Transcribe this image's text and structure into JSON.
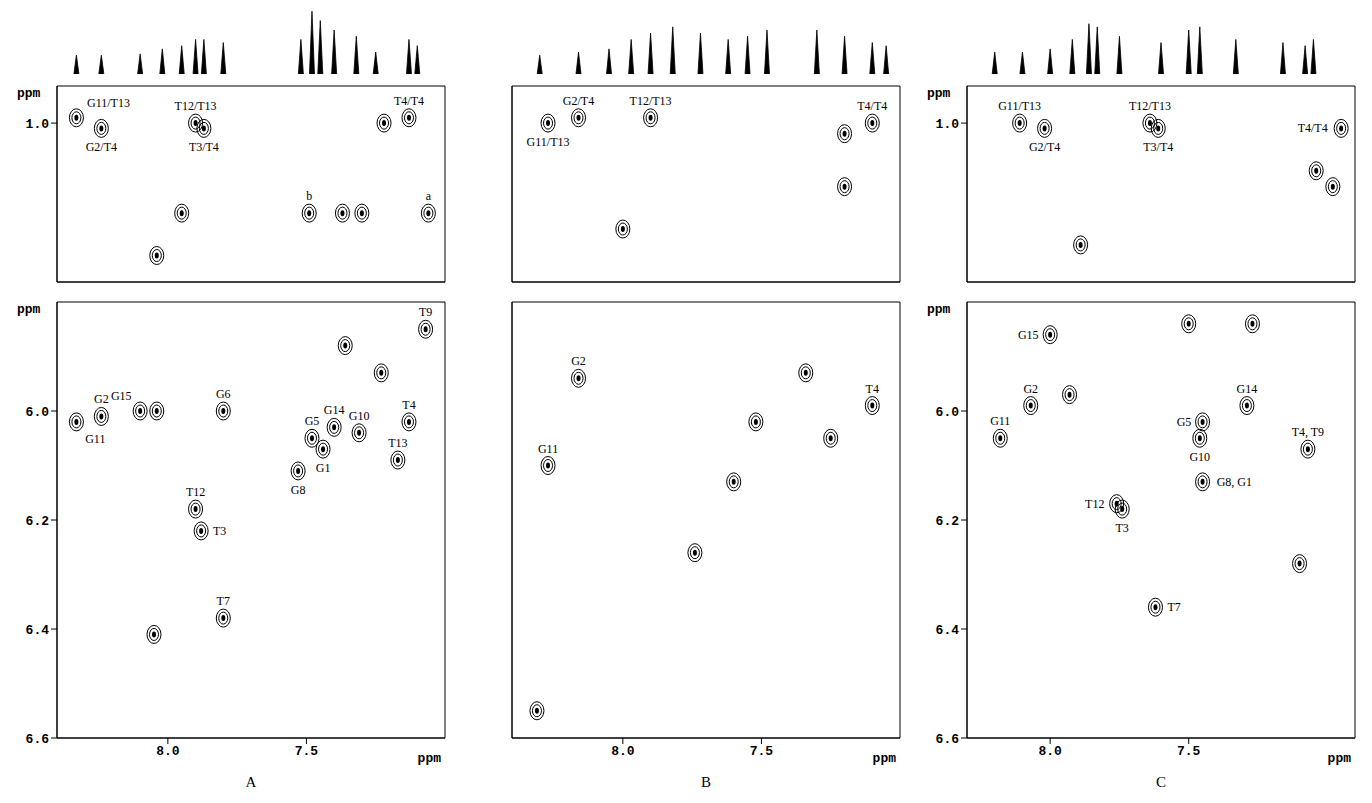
{
  "chart_data": [
    {
      "type": "composite",
      "panel_label": "A",
      "spectrum": {
        "type": "bar",
        "color": "#000000",
        "tick_labels": false,
        "xlim": [
          8.4,
          7.0
        ],
        "ylim": [
          0,
          1.05
        ],
        "x": [
          8.33,
          8.24,
          8.1,
          8.02,
          7.95,
          7.9,
          7.87,
          7.8,
          7.52,
          7.48,
          7.45,
          7.4,
          7.32,
          7.25,
          7.13,
          7.1
        ],
        "values": [
          0.3,
          0.3,
          0.32,
          0.4,
          0.45,
          0.55,
          0.55,
          0.5,
          0.55,
          1.0,
          0.85,
          0.7,
          0.6,
          0.35,
          0.55,
          0.45
        ]
      },
      "methyl": {
        "type": "scatter",
        "color": "#000000",
        "tick_labels": "y",
        "y_label": "ppm",
        "xlim": [
          8.4,
          7.0
        ],
        "ylim": [
          1.3,
          0.93
        ],
        "xticks": [
          {
            "value": 8,
            "label": "8.0"
          },
          {
            "value": 7.5,
            "label": "7.5"
          }
        ],
        "yticks": [
          {
            "value": 1,
            "label": "1.0"
          }
        ],
        "points": [
          {
            "x": 8.33,
            "y": 0.99,
            "label": "G11/T13"
          },
          {
            "x": 8.24,
            "y": 1.01,
            "label": "G2/T4"
          },
          {
            "x": 7.9,
            "y": 1.0,
            "label": "T12/T13"
          },
          {
            "x": 7.87,
            "y": 1.01,
            "label": "T3/T4"
          },
          {
            "x": 7.22,
            "y": 1.0
          },
          {
            "x": 7.13,
            "y": 0.99,
            "label": "T4/T4"
          },
          {
            "x": 7.49,
            "y": 1.17,
            "label": "b"
          },
          {
            "x": 7.06,
            "y": 1.17,
            "label": "a"
          },
          {
            "x": 7.95,
            "y": 1.17
          },
          {
            "x": 8.04,
            "y": 1.25
          },
          {
            "x": 7.37,
            "y": 1.17
          },
          {
            "x": 7.3,
            "y": 1.17
          }
        ]
      },
      "sugar": {
        "type": "scatter",
        "color": "#000000",
        "tick_labels": true,
        "x_label": "ppm",
        "y_label": "ppm",
        "xlim": [
          8.4,
          7.0
        ],
        "ylim": [
          6.6,
          5.8
        ],
        "xticks": [
          {
            "value": 8,
            "label": "8.0"
          },
          {
            "value": 7.5,
            "label": "7.5"
          }
        ],
        "yticks": [
          {
            "value": 6,
            "label": "6.0"
          },
          {
            "value": 6.2,
            "label": "6.2"
          },
          {
            "value": 6.4,
            "label": "6.4"
          },
          {
            "value": 6.6,
            "label": "6.6"
          }
        ],
        "points": [
          {
            "x": 8.33,
            "y": 6.02,
            "label": "G11"
          },
          {
            "x": 8.24,
            "y": 6.01,
            "label": "G2"
          },
          {
            "x": 8.1,
            "y": 6.0,
            "label": "G15"
          },
          {
            "x": 8.04,
            "y": 6.0
          },
          {
            "x": 7.8,
            "y": 6.0,
            "label": "G6"
          },
          {
            "x": 7.9,
            "y": 6.18,
            "label": "T12"
          },
          {
            "x": 7.88,
            "y": 6.22,
            "label": "T3"
          },
          {
            "x": 7.8,
            "y": 6.38,
            "label": "T7"
          },
          {
            "x": 8.05,
            "y": 6.41
          },
          {
            "x": 7.53,
            "y": 6.11,
            "label": "G8"
          },
          {
            "x": 7.44,
            "y": 6.07,
            "label": "G1"
          },
          {
            "x": 7.48,
            "y": 6.05,
            "label": "G5"
          },
          {
            "x": 7.4,
            "y": 6.03,
            "label": "G14"
          },
          {
            "x": 7.31,
            "y": 6.04,
            "label": "G10"
          },
          {
            "x": 7.17,
            "y": 6.09,
            "label": "T13"
          },
          {
            "x": 7.13,
            "y": 6.02,
            "label": "T4"
          },
          {
            "x": 7.07,
            "y": 5.85,
            "label": "T9"
          },
          {
            "x": 7.36,
            "y": 5.88
          },
          {
            "x": 7.23,
            "y": 5.93
          }
        ]
      }
    },
    {
      "type": "composite",
      "panel_label": "B",
      "spectrum": {
        "type": "bar",
        "color": "#000000",
        "tick_labels": false,
        "xlim": [
          8.4,
          7.0
        ],
        "ylim": [
          0,
          1.05
        ],
        "x": [
          8.3,
          8.16,
          8.05,
          7.97,
          7.9,
          7.82,
          7.72,
          7.62,
          7.55,
          7.48,
          7.3,
          7.2,
          7.1,
          7.05
        ],
        "values": [
          0.3,
          0.35,
          0.4,
          0.55,
          0.65,
          0.75,
          0.65,
          0.55,
          0.6,
          0.7,
          0.7,
          0.6,
          0.5,
          0.45
        ]
      },
      "methyl": {
        "type": "scatter",
        "color": "#000000",
        "tick_labels": false,
        "xlim": [
          8.4,
          7.0
        ],
        "ylim": [
          1.3,
          0.93
        ],
        "xticks": [
          {
            "value": 8,
            "label": "8.0"
          },
          {
            "value": 7.5,
            "label": "7.5"
          }
        ],
        "yticks": [
          {
            "value": 1,
            "label": "1.0"
          }
        ],
        "points": [
          {
            "x": 8.27,
            "y": 1.0,
            "label": "G11/T13"
          },
          {
            "x": 8.16,
            "y": 0.99,
            "label": "G2/T4"
          },
          {
            "x": 7.9,
            "y": 0.99,
            "label": "T12/T13"
          },
          {
            "x": 7.1,
            "y": 1.0,
            "label": "T4/T4"
          },
          {
            "x": 7.2,
            "y": 1.02
          },
          {
            "x": 7.2,
            "y": 1.12
          },
          {
            "x": 8.0,
            "y": 1.2
          }
        ]
      },
      "sugar": {
        "type": "scatter",
        "color": "#000000",
        "tick_labels": "x",
        "x_label": "ppm",
        "xlim": [
          8.4,
          7.0
        ],
        "ylim": [
          6.6,
          5.8
        ],
        "xticks": [
          {
            "value": 8,
            "label": "8.0"
          },
          {
            "value": 7.5,
            "label": "7.5"
          }
        ],
        "yticks": [
          {
            "value": 6,
            "label": "6.0"
          },
          {
            "value": 6.2,
            "label": "6.2"
          },
          {
            "value": 6.4,
            "label": "6.4"
          },
          {
            "value": 6.6,
            "label": "6.6"
          }
        ],
        "points": [
          {
            "x": 8.27,
            "y": 6.1,
            "label": "G11"
          },
          {
            "x": 8.16,
            "y": 5.94,
            "label": "G2"
          },
          {
            "x": 7.1,
            "y": 5.99,
            "label": "T4"
          },
          {
            "x": 7.52,
            "y": 6.02
          },
          {
            "x": 7.25,
            "y": 6.05
          },
          {
            "x": 7.34,
            "y": 5.93
          },
          {
            "x": 8.31,
            "y": 6.55
          },
          {
            "x": 7.74,
            "y": 6.26
          },
          {
            "x": 7.6,
            "y": 6.13
          }
        ]
      }
    },
    {
      "type": "composite",
      "panel_label": "C",
      "spectrum": {
        "type": "bar",
        "color": "#000000",
        "tick_labels": false,
        "xlim": [
          8.3,
          6.9
        ],
        "ylim": [
          0,
          1.05
        ],
        "x": [
          8.2,
          8.1,
          8.0,
          7.92,
          7.86,
          7.83,
          7.75,
          7.6,
          7.5,
          7.46,
          7.33,
          7.16,
          7.08,
          7.05
        ],
        "values": [
          0.35,
          0.35,
          0.4,
          0.55,
          0.8,
          0.75,
          0.6,
          0.5,
          0.7,
          0.75,
          0.55,
          0.5,
          0.45,
          0.55
        ]
      },
      "methyl": {
        "type": "scatter",
        "color": "#000000",
        "tick_labels": "y",
        "y_label": "ppm",
        "xlim": [
          8.3,
          6.9
        ],
        "ylim": [
          1.3,
          0.93
        ],
        "xticks": [
          {
            "value": 8,
            "label": "8.0"
          },
          {
            "value": 7.5,
            "label": "7.5"
          }
        ],
        "yticks": [
          {
            "value": 1,
            "label": "1.0"
          }
        ],
        "points": [
          {
            "x": 8.11,
            "y": 1.0,
            "label": "G11/T13"
          },
          {
            "x": 8.02,
            "y": 1.01,
            "label": "G2/T4"
          },
          {
            "x": 7.64,
            "y": 1.0,
            "label": "T12/T13"
          },
          {
            "x": 7.61,
            "y": 1.01,
            "label": "T3/T4"
          },
          {
            "x": 6.95,
            "y": 1.01,
            "label": "T4/T4"
          },
          {
            "x": 6.98,
            "y": 1.12
          },
          {
            "x": 7.04,
            "y": 1.09
          },
          {
            "x": 7.89,
            "y": 1.23
          }
        ]
      },
      "sugar": {
        "type": "scatter",
        "color": "#000000",
        "tick_labels": true,
        "x_label": "ppm",
        "y_label": "ppm",
        "xlim": [
          8.3,
          6.9
        ],
        "ylim": [
          6.6,
          5.8
        ],
        "xticks": [
          {
            "value": 8,
            "label": "8.0"
          },
          {
            "value": 7.5,
            "label": "7.5"
          }
        ],
        "yticks": [
          {
            "value": 6,
            "label": "6.0"
          },
          {
            "value": 6.2,
            "label": "6.2"
          },
          {
            "value": 6.4,
            "label": "6.4"
          },
          {
            "value": 6.6,
            "label": "6.6"
          }
        ],
        "points": [
          {
            "x": 8.0,
            "y": 5.86,
            "label": "G15"
          },
          {
            "x": 8.18,
            "y": 6.05,
            "label": "G11"
          },
          {
            "x": 8.07,
            "y": 5.99,
            "label": "G2"
          },
          {
            "x": 7.93,
            "y": 5.97
          },
          {
            "x": 7.76,
            "y": 6.17,
            "label": "T12"
          },
          {
            "x": 7.74,
            "y": 6.18,
            "label": "T3"
          },
          {
            "x": 7.62,
            "y": 6.36,
            "label": "T7"
          },
          {
            "x": 7.45,
            "y": 6.02,
            "label": "G5"
          },
          {
            "x": 7.46,
            "y": 6.05,
            "label": "G10"
          },
          {
            "x": 7.45,
            "y": 6.13,
            "label": "G8, G1"
          },
          {
            "x": 7.29,
            "y": 5.99,
            "label": "G14"
          },
          {
            "x": 7.07,
            "y": 6.07,
            "label": "T4, T9"
          },
          {
            "x": 7.27,
            "y": 5.84
          },
          {
            "x": 7.5,
            "y": 5.84
          },
          {
            "x": 7.1,
            "y": 6.28
          }
        ]
      }
    }
  ]
}
